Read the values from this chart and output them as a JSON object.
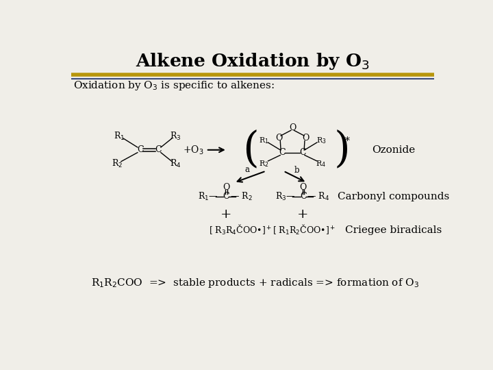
{
  "title": "Alkene Oxidation by O$_3$",
  "subtitle": "Oxidation by O$_3$ is specific to alkenes:",
  "footer_r1r2": "R$_1$R$_2$COO  =>  stable products + radicals => formation of O$_3$",
  "ozonide_label": "Ozonide",
  "carbonyl_label": "Carbonyl compounds",
  "criegee_label": "Criegee biradicals",
  "line1_color": "#B8960C",
  "line2_color": "#3A4A7A",
  "bg_color": "#F0EEE8",
  "title_fontsize": 19,
  "subtitle_fontsize": 11,
  "label_fontsize": 11,
  "chem_fontsize": 9,
  "footer_fontsize": 11
}
